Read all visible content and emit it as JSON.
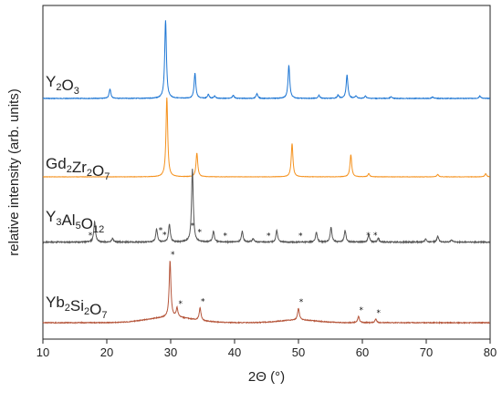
{
  "chart_data": {
    "type": "line",
    "xlabel": "2Θ (°)",
    "ylabel": "relative intensity (arb. units)",
    "xlim": [
      10,
      80
    ],
    "xticks": [
      10,
      20,
      30,
      40,
      50,
      60,
      70,
      80
    ],
    "grid": false,
    "peak_marker": "*",
    "series": [
      {
        "name": "Y2O3",
        "label_main": [
          "Y",
          "O"
        ],
        "label_sub": [
          "2",
          "3"
        ],
        "color": "#1f77d4",
        "baseline": 0.0,
        "peaks": [
          [
            20.5,
            0.12
          ],
          [
            29.2,
            1.0
          ],
          [
            33.8,
            0.32
          ],
          [
            35.9,
            0.05
          ],
          [
            36.9,
            0.03
          ],
          [
            39.8,
            0.04
          ],
          [
            43.5,
            0.06
          ],
          [
            48.5,
            0.42
          ],
          [
            53.2,
            0.04
          ],
          [
            56.2,
            0.04
          ],
          [
            57.6,
            0.3
          ],
          [
            59.0,
            0.03
          ],
          [
            60.5,
            0.03
          ],
          [
            64.5,
            0.02
          ],
          [
            71.0,
            0.02
          ],
          [
            78.4,
            0.03
          ]
        ],
        "markers": []
      },
      {
        "name": "Gd2Zr2O7",
        "label_main": [
          "Gd",
          "Zr",
          "O"
        ],
        "label_sub": [
          "2",
          "2",
          "7"
        ],
        "color": "#f5921e",
        "baseline": 0.0,
        "peaks": [
          [
            29.4,
            1.0
          ],
          [
            34.1,
            0.3
          ],
          [
            49.0,
            0.42
          ],
          [
            58.2,
            0.28
          ],
          [
            61.0,
            0.04
          ],
          [
            71.8,
            0.03
          ],
          [
            79.3,
            0.04
          ]
        ],
        "markers": []
      },
      {
        "name": "Y3Al5O12",
        "label_main": [
          "Y",
          "Al",
          "O"
        ],
        "label_sub": [
          "3",
          "5",
          "12"
        ],
        "color": "#555555",
        "baseline": 0.03,
        "peaks": [
          [
            18.1,
            0.28
          ],
          [
            20.9,
            0.05
          ],
          [
            27.8,
            0.18
          ],
          [
            29.8,
            0.25
          ],
          [
            33.4,
            1.0
          ],
          [
            36.7,
            0.15
          ],
          [
            41.2,
            0.15
          ],
          [
            42.9,
            0.05
          ],
          [
            46.6,
            0.16
          ],
          [
            52.8,
            0.14
          ],
          [
            55.1,
            0.2
          ],
          [
            57.3,
            0.16
          ],
          [
            61.0,
            0.1
          ],
          [
            62.5,
            0.05
          ],
          [
            69.9,
            0.04
          ],
          [
            71.8,
            0.08
          ],
          [
            74.0,
            0.03
          ]
        ],
        "markers": [
          17.0,
          28.0,
          28.6,
          33.0,
          34.1,
          38.1,
          44.9,
          49.9,
          60.5,
          61.6
        ]
      },
      {
        "name": "Yb2Si2O7",
        "label_main": [
          "Yb",
          "Si",
          "O"
        ],
        "label_sub": [
          "2",
          "2",
          "7"
        ],
        "color": "#b5553a",
        "baseline": 0.02,
        "peaks": [
          [
            29.9,
            0.62
          ],
          [
            31.0,
            0.1
          ],
          [
            34.6,
            0.14
          ],
          [
            50.0,
            0.13
          ],
          [
            59.4,
            0.07
          ],
          [
            62.1,
            0.04
          ]
        ],
        "markers": [
          29.9,
          31.1,
          34.6,
          50.0,
          59.4,
          62.1
        ]
      }
    ]
  }
}
